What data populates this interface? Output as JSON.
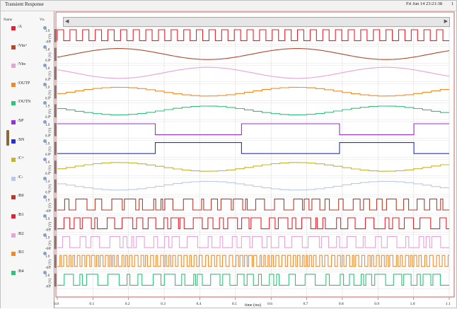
{
  "window": {
    "title": "Transient Response",
    "timestamp": "Fri Jun 14 23:21:38",
    "corner": "1"
  },
  "panel": {
    "name_header": "Name",
    "vis_header": "Vis"
  },
  "signals": [
    {
      "label": "/A",
      "color": "#e8202a",
      "ymax": "1.9",
      "ymin": "-0.1",
      "kind": "clock"
    },
    {
      "label": "/Vin+",
      "color": "#b5472c",
      "ymax": "1.0",
      "ymin": "0.1",
      "kind": "sine"
    },
    {
      "label": "/Vin-",
      "color": "#e6a3d8",
      "ymax": "1.0",
      "ymin": "0.1",
      "kind": "sine"
    },
    {
      "label": "/OUTP",
      "color": "#ef8c2a",
      "ymax": "1.9",
      "ymin": "0.1",
      "kind": "stair"
    },
    {
      "label": "/OUTN",
      "color": "#2fc27a",
      "ymax": "1.9",
      "ymin": "0.1",
      "kind": "stair"
    },
    {
      "label": "/SP",
      "color": "#9a2fd6",
      "ymax": "1.9",
      "ymin": "0.1",
      "kind": "square"
    },
    {
      "label": "/SN",
      "color": "#1f32d6",
      "ymax": "1.9",
      "ymin": "0.1",
      "kind": "square"
    },
    {
      "label": "/C+",
      "color": "#c7b42a",
      "ymax": "1.9",
      "ymin": "0.1",
      "kind": "stair"
    },
    {
      "label": "/C-",
      "color": "#b9c9e6",
      "ymax": "1.4",
      "ymin": "0.1",
      "kind": "stair"
    },
    {
      "label": "/B0",
      "color": "#b53a2a",
      "ymax": "1.9",
      "ymin": "-0.1",
      "kind": "digital"
    },
    {
      "label": "/B1",
      "color": "#e8202a",
      "ymax": "1.9",
      "ymin": "-0.1",
      "kind": "digital"
    },
    {
      "label": "/B2",
      "color": "#e6a3d8",
      "ymax": "1.9",
      "ymin": "-0.1",
      "kind": "digital"
    },
    {
      "label": "/B3",
      "color": "#ef8c2a",
      "ymax": "1.9",
      "ymin": "-0.1",
      "kind": "digital"
    },
    {
      "label": "/B4",
      "color": "#2fc27a",
      "ymax": "2.0",
      "ymin": "-0.1",
      "kind": "digital"
    }
  ],
  "axis": {
    "y_unit": "V (V)",
    "x_title": "time (ms)",
    "x_ticks": [
      "0.0",
      "0.1",
      "0.2",
      "0.3",
      "0.4",
      "0.5",
      "0.6",
      "0.7",
      "0.8",
      "0.9",
      "1.0",
      "1.1"
    ]
  },
  "colors": {
    "frame_border": "#d03030",
    "grid": "#b0b0b0"
  }
}
